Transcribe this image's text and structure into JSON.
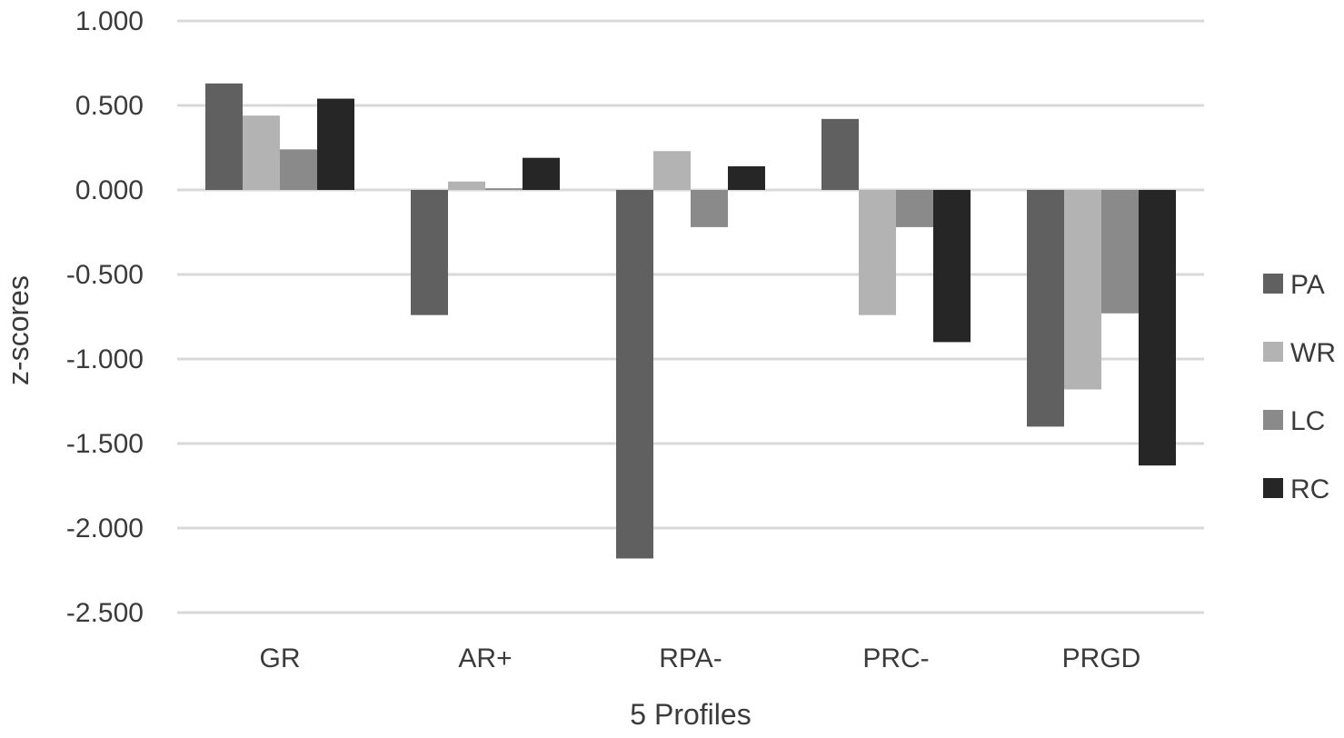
{
  "chart_data": {
    "type": "bar",
    "title": "",
    "xlabel": "5 Profiles",
    "ylabel": "z-scores",
    "categories": [
      "GR",
      "AR+",
      "RPA-",
      "PRC-",
      "PRGD"
    ],
    "series": [
      {
        "name": "PA",
        "color": "#606060",
        "values": [
          0.63,
          -0.74,
          -2.18,
          0.42,
          -1.4
        ]
      },
      {
        "name": "WR",
        "color": "#b3b3b3",
        "values": [
          0.44,
          0.05,
          0.23,
          -0.74,
          -1.18
        ]
      },
      {
        "name": "LC",
        "color": "#8a8a8a",
        "values": [
          0.24,
          0.01,
          -0.22,
          -0.22,
          -0.73
        ]
      },
      {
        "name": "RC",
        "color": "#262626",
        "values": [
          0.54,
          0.19,
          0.14,
          -0.9,
          -1.63
        ]
      }
    ],
    "yticks": [
      "1.000",
      "0.500",
      "0.000",
      "-0.500",
      "-1.000",
      "-1.500",
      "-2.000",
      "-2.500"
    ],
    "ytick_values": [
      1.0,
      0.5,
      0.0,
      -0.5,
      -1.0,
      -1.5,
      -2.0,
      -2.5
    ],
    "ylim": [
      -2.5,
      1.0
    ],
    "grid": true,
    "legend_position": "right"
  }
}
